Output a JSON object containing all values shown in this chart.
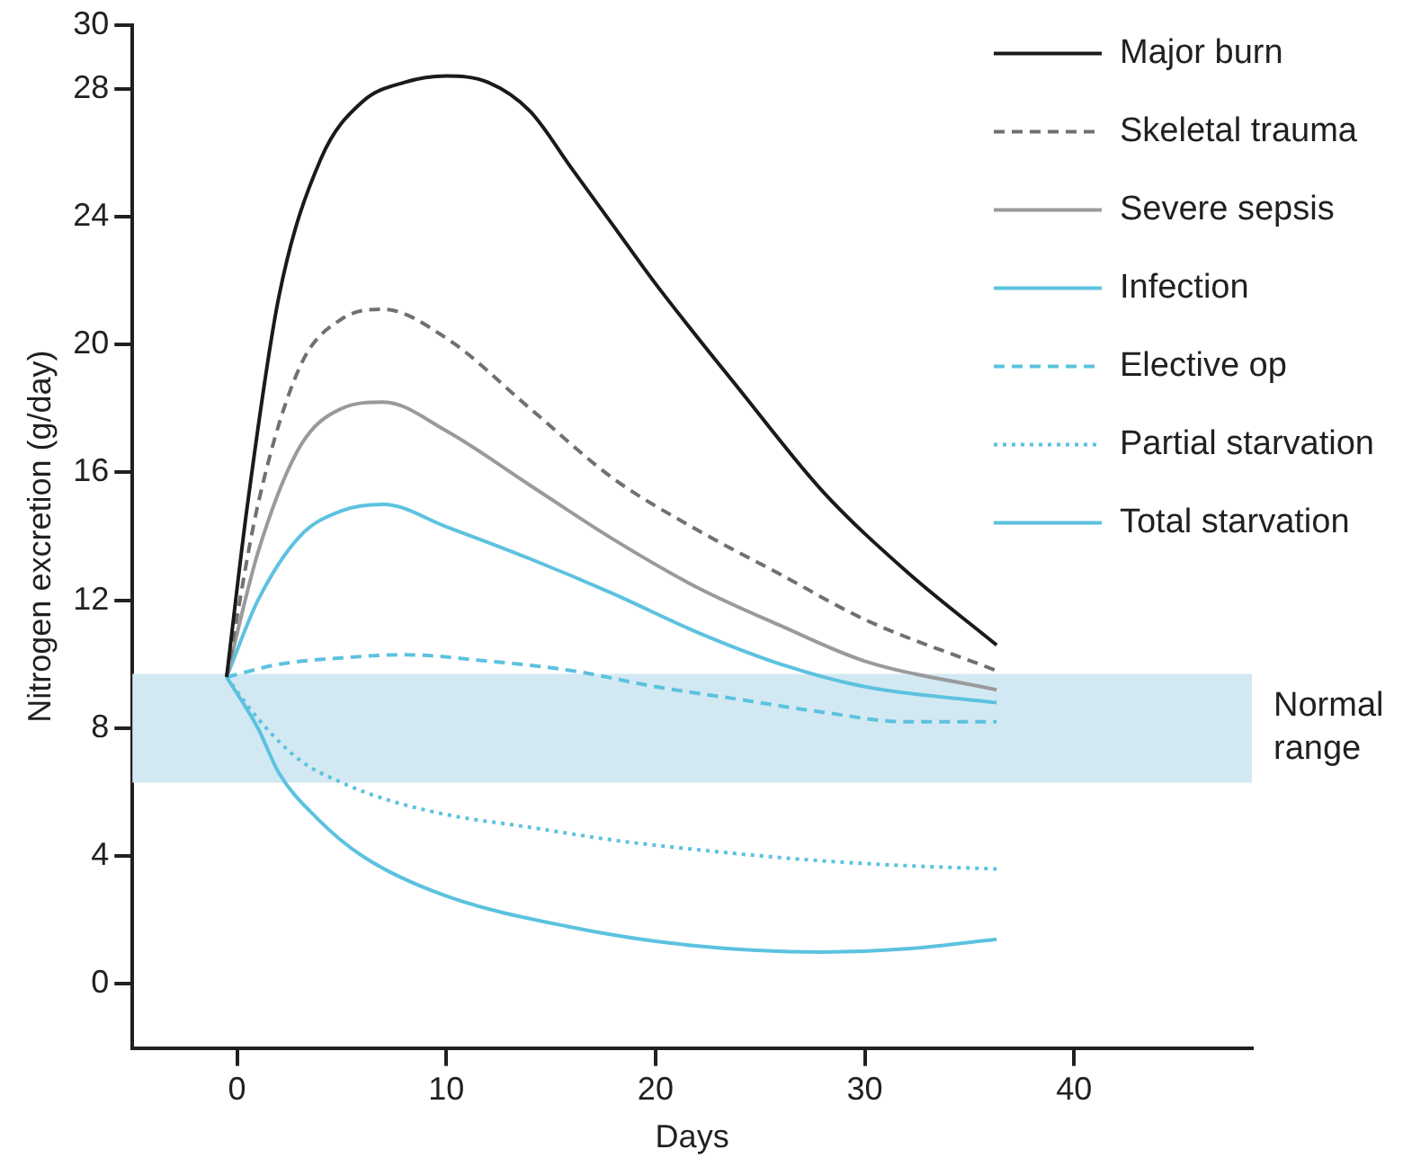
{
  "chart_data": {
    "type": "line",
    "xlabel": "Days",
    "ylabel": "Nitrogen excretion (g/day)",
    "xlim": [
      -5,
      48.5
    ],
    "xticks": [
      0,
      10,
      20,
      30,
      40
    ],
    "ylim": [
      -2,
      30
    ],
    "yticks": [
      0,
      4,
      8,
      12,
      16,
      20,
      24,
      28,
      30
    ],
    "grid": false,
    "legend": "top right",
    "marker": "none",
    "bands": [
      {
        "axis": "y",
        "from": 6.3,
        "to": 9.7,
        "label": "Normal range",
        "color": "#d2e9f3"
      }
    ],
    "series": [
      {
        "name": "Major burn",
        "color": "#1a1a1a",
        "line_style": "solid",
        "x": [
          -0.5,
          0.5,
          2,
          4,
          6,
          8,
          10,
          12,
          14,
          16,
          18,
          20,
          24,
          28,
          32,
          36.3
        ],
        "values": [
          9.6,
          15,
          21.5,
          25.8,
          27.6,
          28.2,
          28.4,
          28.2,
          27.3,
          25.5,
          23.7,
          21.9,
          18.6,
          15.4,
          12.9,
          10.6
        ]
      },
      {
        "name": "Skeletal trauma",
        "color": "#707070",
        "line_style": "dashed",
        "x": [
          -0.5,
          1,
          3,
          5,
          7,
          10,
          14,
          18,
          22,
          26,
          30,
          36.3
        ],
        "values": [
          9.6,
          15,
          19.3,
          20.8,
          21.1,
          20.2,
          18.0,
          15.8,
          14.2,
          12.8,
          11.4,
          9.8
        ]
      },
      {
        "name": "Severe sepsis",
        "color": "#9a9a9a",
        "line_style": "solid",
        "x": [
          -0.5,
          1,
          3,
          5,
          7,
          10,
          14,
          18,
          22,
          26,
          30,
          36.3
        ],
        "values": [
          9.6,
          13.5,
          16.8,
          18,
          18.2,
          17.3,
          15.6,
          13.9,
          12.4,
          11.2,
          10.1,
          9.2
        ]
      },
      {
        "name": "Infection",
        "color": "#5cc2df",
        "line_style": "solid",
        "x": [
          -0.5,
          1,
          3,
          5,
          7,
          10,
          14,
          18,
          22,
          26,
          30,
          36.3
        ],
        "values": [
          9.6,
          12,
          14,
          14.8,
          15,
          14.3,
          13.3,
          12.2,
          11,
          10,
          9.3,
          8.8
        ]
      },
      {
        "name": "Elective op",
        "color": "#5cc2df",
        "line_style": "dashed",
        "x": [
          -0.5,
          2,
          5,
          8,
          12,
          16,
          20,
          24,
          28,
          32,
          36.3
        ],
        "values": [
          9.6,
          10,
          10.2,
          10.3,
          10.1,
          9.8,
          9.3,
          8.9,
          8.5,
          8.2,
          8.2
        ]
      },
      {
        "name": "Partial starvation",
        "color": "#5cc2df",
        "line_style": "dotted",
        "x": [
          -0.5,
          1,
          3,
          5,
          7,
          10,
          14,
          18,
          22,
          27,
          32,
          36.3
        ],
        "values": [
          9.6,
          8.3,
          7.0,
          6.3,
          5.8,
          5.3,
          4.9,
          4.5,
          4.2,
          3.9,
          3.7,
          3.6
        ]
      },
      {
        "name": "Total starvation",
        "color": "#5cc2df",
        "line_style": "solid",
        "x": [
          -0.5,
          1,
          2,
          3.8,
          6,
          9.8,
          15.8,
          21.8,
          28,
          32,
          36.3
        ],
        "values": [
          9.6,
          8.0,
          6.6,
          5.2,
          4.0,
          2.8,
          1.8,
          1.2,
          1.0,
          1.1,
          1.4
        ]
      }
    ]
  }
}
